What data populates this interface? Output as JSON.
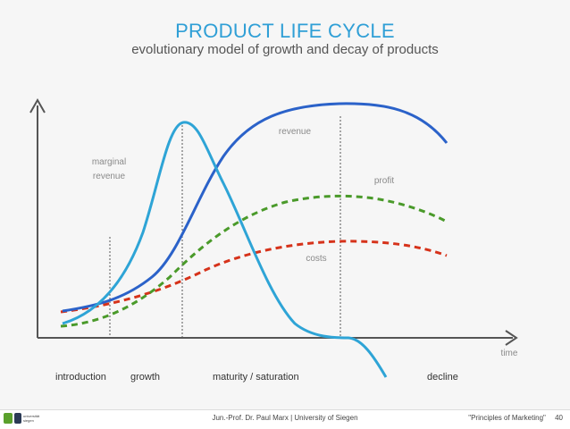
{
  "title": "PRODUCT LIFE CYCLE",
  "subtitle": "evolutionary model of growth and decay of products",
  "labels": {
    "marginal_revenue_1": "marginal",
    "marginal_revenue_2": "revenue",
    "revenue": "revenue",
    "profit": "profit",
    "costs": "costs",
    "time": "time"
  },
  "phases": [
    "introduction",
    "growth",
    "maturity / saturation",
    "decline"
  ],
  "footer": {
    "center": "Jun.-Prof. Dr. Paul Marx | University of Siegen",
    "course": "\"Principles of Marketing\"",
    "page": "40"
  },
  "logo_text": "universität siegen",
  "colors": {
    "title": "#2f9fd6",
    "revenue": "#2b62c9",
    "marginal_revenue": "#2ea4d6",
    "profit": "#4a9a2a",
    "costs": "#d6321a"
  }
}
